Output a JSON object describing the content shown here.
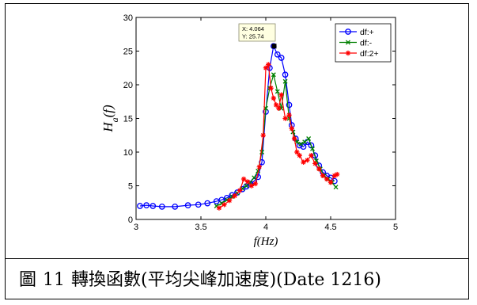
{
  "caption": {
    "prefix": "圖",
    "number": "11",
    "text": "轉換函數(平均尖峰加速度)(Date 1216)"
  },
  "chart_data": {
    "type": "line",
    "xlabel": "f(Hz)",
    "ylabel": "Ha(f)",
    "ylabel_main": "H",
    "ylabel_sub": "a",
    "ylabel_suffix": "(f)",
    "xlim": [
      3,
      5
    ],
    "ylim": [
      0,
      30
    ],
    "xticks": [
      3,
      3.5,
      4,
      4.5,
      5
    ],
    "yticks": [
      0,
      5,
      10,
      15,
      20,
      25,
      30
    ],
    "grid": false,
    "legend_position": "top-right",
    "datatip": {
      "x": 4.064,
      "y": 25.74,
      "x_label": "X: 4.064",
      "y_label": "Y: 25.74"
    },
    "series": [
      {
        "name": "df:+",
        "color": "#0000ff",
        "marker": "circle",
        "x": [
          3.03,
          3.08,
          3.13,
          3.2,
          3.3,
          3.4,
          3.48,
          3.55,
          3.62,
          3.66,
          3.7,
          3.74,
          3.78,
          3.82,
          3.85,
          3.88,
          3.91,
          3.94,
          3.97,
          4.0,
          4.03,
          4.06,
          4.09,
          4.12,
          4.15,
          4.18,
          4.2,
          4.23,
          4.26,
          4.29,
          4.32,
          4.35,
          4.38,
          4.41,
          4.44,
          4.47,
          4.5,
          4.53
        ],
        "y": [
          2.0,
          2.1,
          2.0,
          1.9,
          1.9,
          2.1,
          2.2,
          2.4,
          2.7,
          2.9,
          3.2,
          3.6,
          4.0,
          4.5,
          4.9,
          5.3,
          5.7,
          6.3,
          8.5,
          16.0,
          22.5,
          25.74,
          24.5,
          24.0,
          21.5,
          17.0,
          14.0,
          12.0,
          11.0,
          10.8,
          11.5,
          11.0,
          9.5,
          8.0,
          7.0,
          6.5,
          6.2,
          5.7
        ]
      },
      {
        "name": "df:-",
        "color": "#008000",
        "marker": "x",
        "x": [
          3.62,
          3.66,
          3.7,
          3.74,
          3.78,
          3.82,
          3.85,
          3.88,
          3.91,
          3.94,
          3.97,
          4.0,
          4.03,
          4.06,
          4.09,
          4.12,
          4.15,
          4.18,
          4.21,
          4.24,
          4.27,
          4.3,
          4.33,
          4.36,
          4.39,
          4.42,
          4.45,
          4.48,
          4.51,
          4.54
        ],
        "y": [
          2.0,
          2.4,
          2.9,
          3.4,
          3.9,
          4.6,
          5.0,
          5.5,
          6.2,
          7.2,
          10.0,
          16.5,
          19.5,
          21.5,
          19.0,
          16.5,
          20.5,
          15.0,
          13.0,
          11.5,
          11.2,
          11.5,
          12.0,
          10.5,
          8.7,
          7.5,
          6.5,
          6.0,
          5.5,
          4.8
        ]
      },
      {
        "name": "df:2+",
        "color": "#ff0000",
        "marker": "star",
        "x": [
          3.64,
          3.68,
          3.72,
          3.76,
          3.8,
          3.83,
          3.86,
          3.89,
          3.92,
          3.95,
          3.98,
          4.0,
          4.02,
          4.04,
          4.06,
          4.08,
          4.1,
          4.12,
          4.15,
          4.18,
          4.2,
          4.22,
          4.24,
          4.26,
          4.29,
          4.32,
          4.35,
          4.38,
          4.41,
          4.44,
          4.47,
          4.5,
          4.53,
          4.55
        ],
        "y": [
          1.7,
          2.2,
          2.8,
          3.5,
          4.3,
          6.0,
          5.6,
          5.0,
          5.3,
          7.8,
          12.5,
          22.5,
          23.0,
          19.5,
          18.0,
          17.0,
          16.5,
          18.5,
          15.0,
          15.5,
          13.5,
          12.0,
          10.0,
          9.5,
          8.5,
          8.8,
          9.5,
          8.3,
          7.5,
          6.5,
          6.0,
          5.5,
          6.5,
          6.7
        ]
      }
    ]
  }
}
